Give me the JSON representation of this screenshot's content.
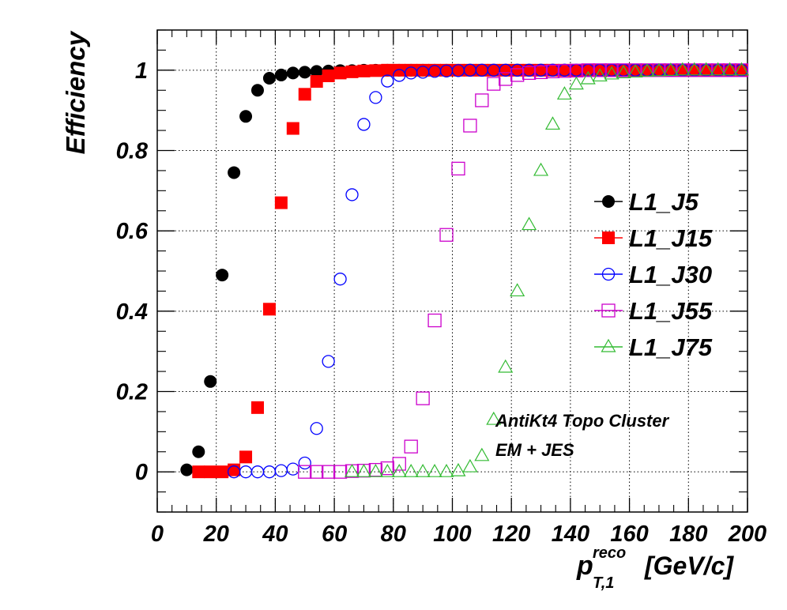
{
  "chart_data": {
    "type": "scatter",
    "xlabel_main": "p",
    "xlabel_sup": "reco",
    "xlabel_sub": "T,1",
    "xlabel_unit": "[GeV/c]",
    "ylabel": "Efficiency",
    "xlim": [
      0,
      200
    ],
    "ylim": [
      -0.1,
      1.1
    ],
    "xticks": [
      0,
      20,
      40,
      60,
      80,
      100,
      120,
      140,
      160,
      180,
      200
    ],
    "yticks": [
      0,
      0.2,
      0.4,
      0.6,
      0.8,
      1
    ],
    "xtick_labels": [
      "0",
      "20",
      "40",
      "60",
      "80",
      "100",
      "120",
      "140",
      "160",
      "180",
      "200"
    ],
    "ytick_labels": [
      "0",
      "0.2",
      "0.4",
      "0.6",
      "0.8",
      "1"
    ],
    "grid": true,
    "legend_position": "right",
    "annotations": [
      "AntiKt4 Topo Cluster",
      "EM + JES"
    ],
    "series": [
      {
        "name": "L1_J5",
        "marker": "filled-circle",
        "color": "#000000",
        "x": [
          10,
          14,
          18,
          22,
          26,
          30,
          34,
          38,
          42,
          46,
          50,
          54,
          58,
          62,
          66,
          70,
          74,
          78,
          82,
          86,
          90,
          94,
          98,
          102,
          106,
          110,
          114,
          118,
          122,
          126,
          130,
          134,
          138,
          142,
          146,
          150,
          154,
          158,
          162,
          166,
          170,
          174,
          178,
          182,
          186,
          190,
          194,
          198
        ],
        "y": [
          0.005,
          0.05,
          0.225,
          0.49,
          0.745,
          0.885,
          0.95,
          0.98,
          0.988,
          0.993,
          0.995,
          0.997,
          0.998,
          0.999,
          0.999,
          1,
          1,
          1,
          1,
          1,
          1,
          1,
          1,
          1,
          1,
          1,
          1,
          1,
          1,
          1,
          1,
          1,
          1,
          1,
          1,
          1,
          1,
          1,
          1,
          1,
          1,
          1,
          1,
          1,
          1,
          1,
          1,
          1
        ]
      },
      {
        "name": "L1_J15",
        "marker": "filled-square",
        "color": "#ff0000",
        "x": [
          14,
          18,
          22,
          26,
          30,
          34,
          38,
          42,
          46,
          50,
          54,
          58,
          62,
          66,
          70,
          74,
          78,
          82,
          86,
          90,
          94,
          98,
          102,
          106,
          110,
          114,
          118,
          122,
          126,
          130,
          134,
          138,
          142,
          146,
          150,
          154,
          158,
          162,
          166,
          170,
          174,
          178,
          182,
          186,
          190,
          194,
          198
        ],
        "y": [
          0,
          0,
          0,
          0.005,
          0.037,
          0.16,
          0.405,
          0.67,
          0.855,
          0.94,
          0.972,
          0.986,
          0.993,
          0.996,
          0.998,
          0.999,
          1,
          1,
          1,
          1,
          1,
          1,
          1,
          1,
          1,
          1,
          1,
          1,
          1,
          1,
          1,
          1,
          1,
          1,
          1,
          1,
          1,
          1,
          1,
          1,
          1,
          1,
          1,
          1,
          1,
          1,
          1
        ]
      },
      {
        "name": "L1_J30",
        "marker": "open-circle",
        "color": "#0000ff",
        "x": [
          26,
          30,
          34,
          38,
          42,
          46,
          50,
          54,
          58,
          62,
          66,
          70,
          74,
          78,
          82,
          86,
          90,
          94,
          98,
          102,
          106,
          110,
          114,
          118,
          122,
          126,
          130,
          134,
          138,
          142,
          146,
          150,
          154,
          158,
          162,
          166,
          170,
          174,
          178,
          182,
          186,
          190,
          194,
          198
        ],
        "y": [
          0,
          0,
          0,
          0,
          0.003,
          0.007,
          0.022,
          0.108,
          0.275,
          0.48,
          0.69,
          0.865,
          0.932,
          0.973,
          0.987,
          0.993,
          0.995,
          0.997,
          0.998,
          0.999,
          1,
          1,
          1,
          1,
          1,
          1,
          1,
          1,
          1,
          1,
          1,
          1,
          1,
          1,
          1,
          1,
          1,
          1,
          1,
          1,
          1,
          1,
          1,
          1
        ]
      },
      {
        "name": "L1_J55",
        "marker": "open-square",
        "color": "#cc00cc",
        "x": [
          50,
          54,
          58,
          62,
          66,
          70,
          74,
          78,
          82,
          86,
          90,
          94,
          98,
          102,
          106,
          110,
          114,
          118,
          122,
          126,
          130,
          134,
          138,
          142,
          146,
          150,
          154,
          158,
          162,
          166,
          170,
          174,
          178,
          182,
          186,
          190,
          194,
          198
        ],
        "y": [
          0,
          0,
          0,
          0,
          0.002,
          0.003,
          0.005,
          0.009,
          0.02,
          0.063,
          0.183,
          0.377,
          0.59,
          0.755,
          0.862,
          0.925,
          0.966,
          0.978,
          0.988,
          0.993,
          0.995,
          0.997,
          0.998,
          0.999,
          1,
          1,
          1,
          1,
          1,
          1,
          1,
          1,
          1,
          1,
          1,
          1,
          1,
          1
        ]
      },
      {
        "name": "L1_J75",
        "marker": "open-triangle",
        "color": "#33bb33",
        "x": [
          66,
          70,
          74,
          78,
          82,
          86,
          90,
          94,
          98,
          102,
          106,
          110,
          114,
          118,
          122,
          126,
          130,
          134,
          138,
          142,
          146,
          150,
          154,
          158,
          162,
          166,
          170,
          174,
          178,
          182,
          186,
          190,
          194,
          198
        ],
        "y": [
          0,
          0,
          0,
          0,
          0,
          0,
          0,
          0,
          0,
          0.002,
          0.012,
          0.04,
          0.13,
          0.26,
          0.45,
          0.615,
          0.75,
          0.865,
          0.94,
          0.965,
          0.978,
          0.985,
          0.99,
          0.993,
          0.995,
          0.997,
          0.998,
          0.999,
          1,
          1,
          1,
          1,
          1,
          1
        ]
      }
    ]
  }
}
